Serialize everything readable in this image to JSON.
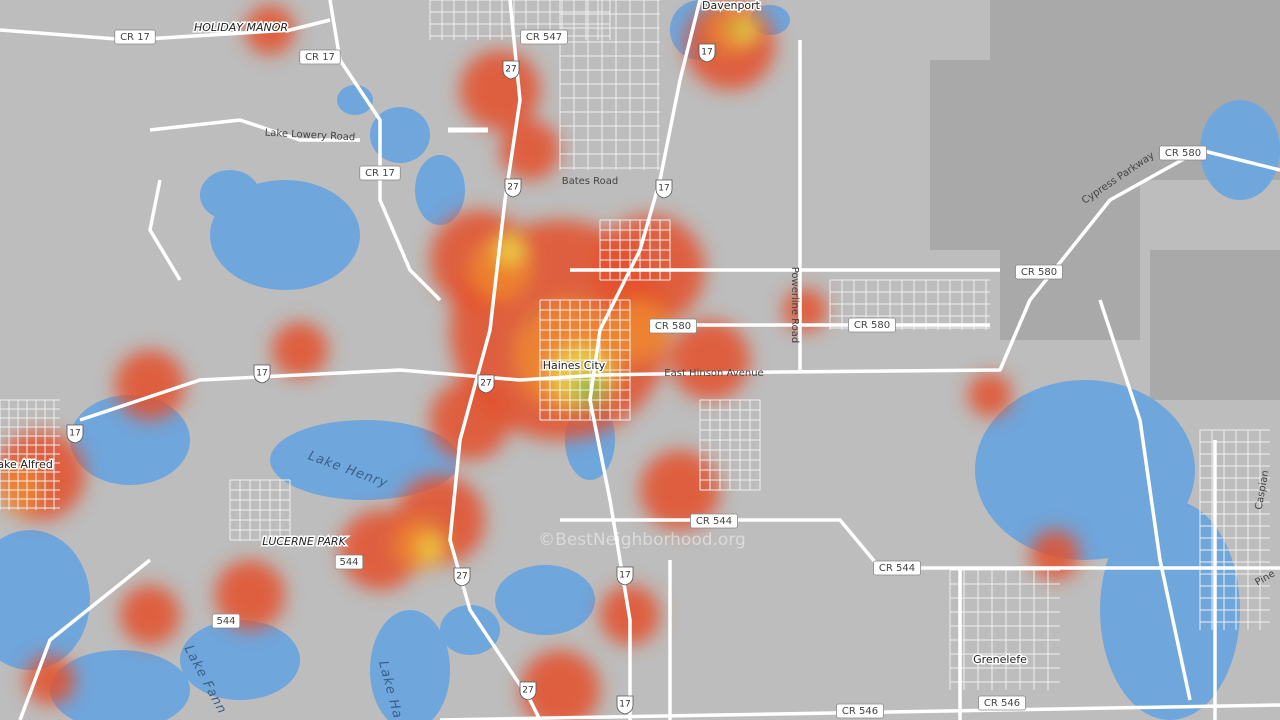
{
  "places": [
    "Davenport",
    "Holiday Manor",
    "Haines City",
    "Lucerne Park",
    "Lake Alfred",
    "Grenelefe"
  ],
  "water_labels": [
    "Lake Henry",
    "Lake Fann",
    "Lake Ha"
  ],
  "road_labels": [
    "CR 17",
    "CR 17",
    "CR 17",
    "CR 547",
    "Lake Lowery Road",
    "Bates Road",
    "CR 580",
    "CR 580",
    "CR 580",
    "CR 580",
    "Cypress Parkway",
    "Powerline Road",
    "East Hinson Avenue",
    "CR 544",
    "CR 544",
    "544",
    "544",
    "CR 546",
    "CR 546",
    "Caspian",
    "Pine"
  ],
  "highway_shields": [
    "27",
    "27",
    "27",
    "27",
    "27",
    "17",
    "17",
    "17",
    "17",
    "17",
    "17"
  ],
  "watermark": "©BestNeighborhood.org"
}
